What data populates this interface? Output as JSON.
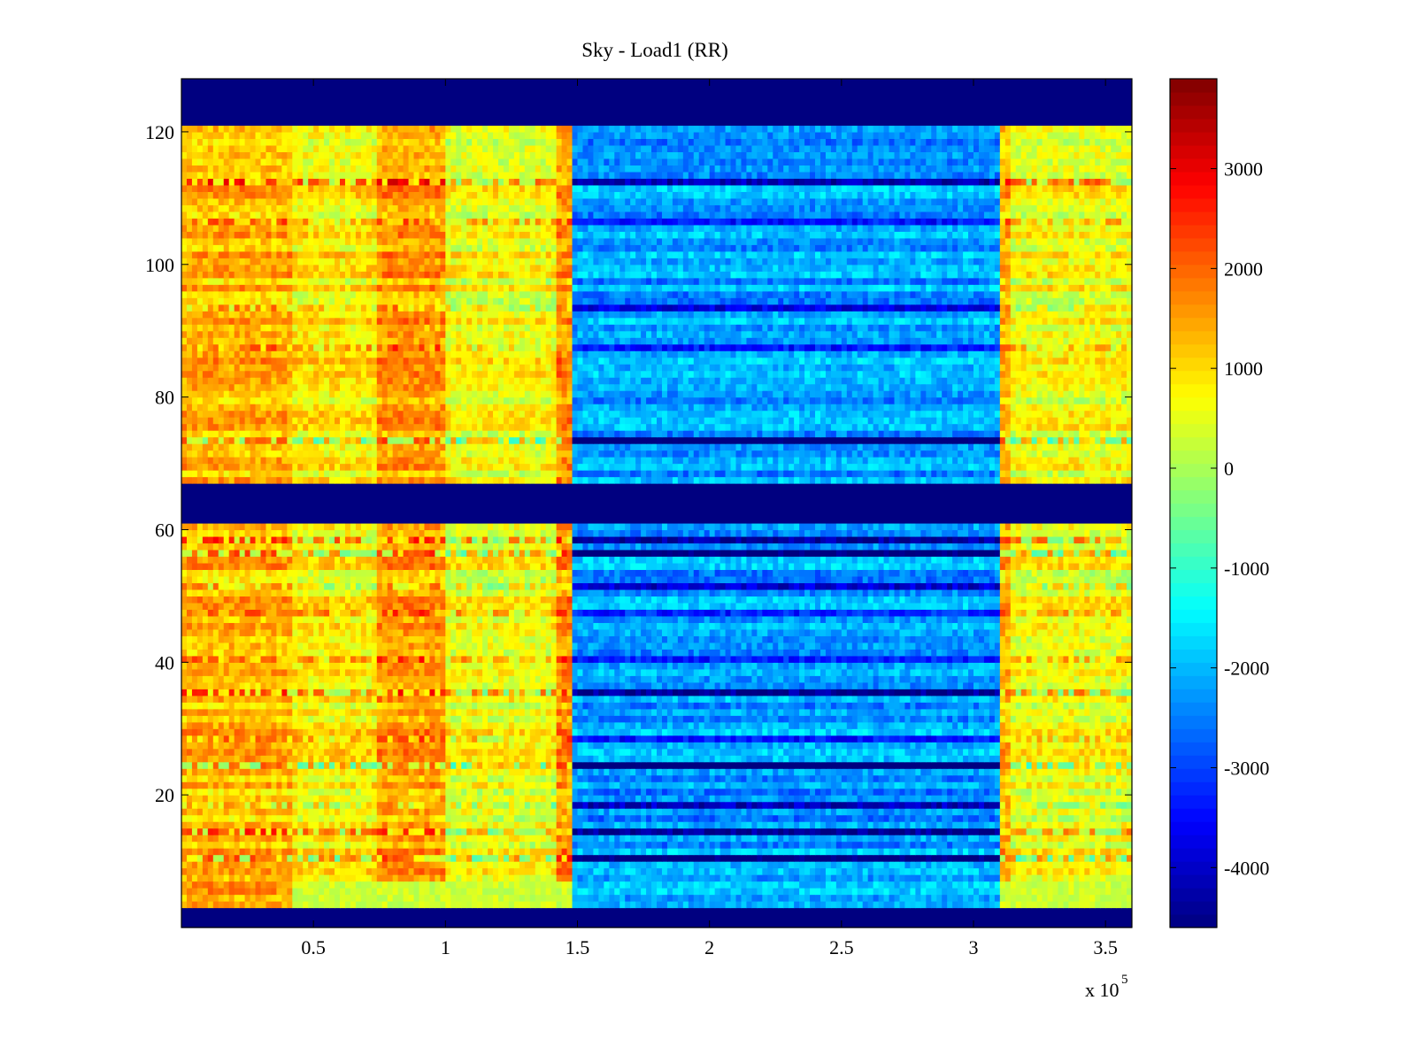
{
  "chart_data": {
    "type": "heatmap",
    "title": "Sky - Load1 (RR)",
    "xlabel": "",
    "ylabel": "",
    "x_exponent_label": "x 10",
    "x_exponent_power": "5",
    "xlim": [
      0,
      3.6
    ],
    "ylim": [
      0,
      128
    ],
    "x_ticks": [
      0.5,
      1,
      1.5,
      2,
      2.5,
      3,
      3.5
    ],
    "x_tick_labels": [
      "0.5",
      "1",
      "1.5",
      "2",
      "2.5",
      "3",
      "3.5"
    ],
    "y_ticks": [
      20,
      40,
      60,
      80,
      100,
      120
    ],
    "y_tick_labels": [
      "20",
      "40",
      "60",
      "80",
      "100",
      "120"
    ],
    "colorbar": {
      "range": [
        -4600,
        3900
      ],
      "ticks": [
        -4000,
        -3000,
        -2000,
        -1000,
        0,
        1000,
        2000,
        3000
      ],
      "tick_labels": [
        "-4000",
        "-3000",
        "-2000",
        "-1000",
        "0",
        "1000",
        "2000",
        "3000"
      ],
      "colormap": "jet"
    },
    "masked_rows": [
      [
        0,
        3
      ],
      [
        61,
        67
      ],
      [
        121,
        128
      ]
    ],
    "column_segments": [
      {
        "x_start": 0.0,
        "x_end": 0.42,
        "mean_value": 1300
      },
      {
        "x_start": 0.42,
        "x_end": 0.75,
        "mean_value": 800
      },
      {
        "x_start": 0.75,
        "x_end": 1.0,
        "mean_value": 1500
      },
      {
        "x_start": 1.0,
        "x_end": 1.42,
        "mean_value": 600
      },
      {
        "x_start": 1.42,
        "x_end": 1.48,
        "mean_value": 1600
      },
      {
        "x_start": 1.48,
        "x_end": 3.1,
        "mean_value": -2200
      },
      {
        "x_start": 3.1,
        "x_end": 3.15,
        "mean_value": 1300
      },
      {
        "x_start": 3.15,
        "x_end": 3.6,
        "mean_value": 600
      }
    ],
    "row_bands": [
      {
        "y": 10,
        "pattern": "strong-negative"
      },
      {
        "y": 14,
        "pattern": "strong-negative"
      },
      {
        "y": 18,
        "pattern": "negative"
      },
      {
        "y": 24,
        "pattern": "strong-negative"
      },
      {
        "y": 28,
        "pattern": "negative"
      },
      {
        "y": 35,
        "pattern": "strong-negative"
      },
      {
        "y": 40,
        "pattern": "negative"
      },
      {
        "y": 47,
        "pattern": "negative"
      },
      {
        "y": 51,
        "pattern": "negative"
      },
      {
        "y": 56,
        "pattern": "strong-negative"
      },
      {
        "y": 58,
        "pattern": "strong-negative"
      },
      {
        "y": 73,
        "pattern": "strong-negative"
      },
      {
        "y": 87,
        "pattern": "negative"
      },
      {
        "y": 93,
        "pattern": "negative"
      },
      {
        "y": 106,
        "pattern": "negative"
      },
      {
        "y": 112,
        "pattern": "strong-negative"
      }
    ]
  }
}
